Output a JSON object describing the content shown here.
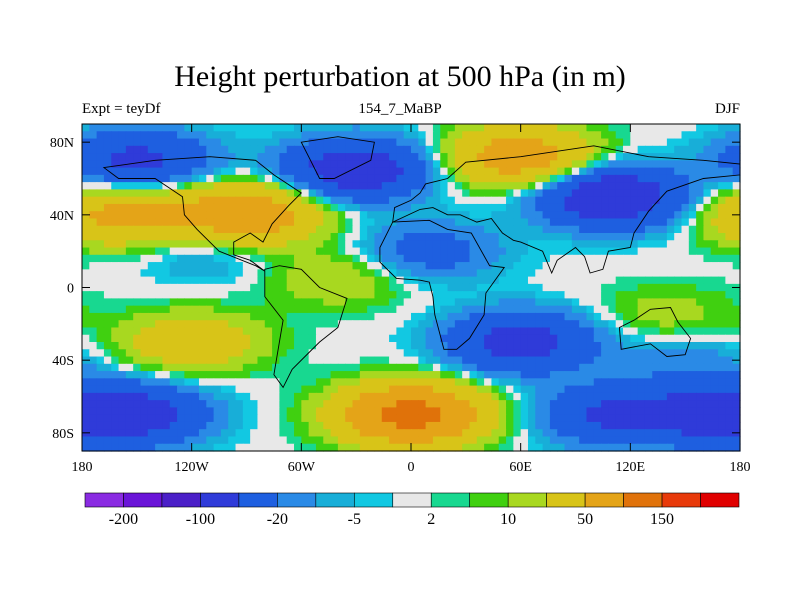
{
  "chart_data": {
    "type": "heatmap",
    "title": "Height perturbation at 500 hPa (in m)",
    "subtitle_left": "Expt = teyDf",
    "subtitle_center": "154_7_MaBP",
    "subtitle_right": "DJF",
    "xlim": [
      -180,
      180
    ],
    "ylim": [
      -90,
      90
    ],
    "x_ticks": [
      {
        "value": -180,
        "label": "180"
      },
      {
        "value": -120,
        "label": "120W"
      },
      {
        "value": -60,
        "label": "60W"
      },
      {
        "value": 0,
        "label": "0"
      },
      {
        "value": 60,
        "label": "60E"
      },
      {
        "value": 120,
        "label": "120E"
      },
      {
        "value": 180,
        "label": "180"
      }
    ],
    "y_ticks": [
      {
        "value": 80,
        "label": "80N"
      },
      {
        "value": 40,
        "label": "40N"
      },
      {
        "value": 0,
        "label": "0"
      },
      {
        "value": -40,
        "label": "40S"
      },
      {
        "value": -80,
        "label": "80S"
      }
    ],
    "colorbar": {
      "levels": [
        -200,
        -150,
        -100,
        -50,
        -20,
        -10,
        -5,
        -2,
        2,
        5,
        10,
        20,
        50,
        100,
        150,
        200
      ],
      "colors": [
        "#8a2be2",
        "#6a14d8",
        "#4b1fc8",
        "#2f3bd9",
        "#1e5fe0",
        "#2a8ae6",
        "#18aed8",
        "#12c8e2",
        "#e8e8e8",
        "#18d890",
        "#40d010",
        "#a8d820",
        "#d8c418",
        "#e4a418",
        "#e0720a",
        "#e83a0a",
        "#e00000"
      ],
      "labels": [
        {
          "level": -200,
          "text": "-200"
        },
        {
          "level": -100,
          "text": "-100"
        },
        {
          "level": -20,
          "text": "-20"
        },
        {
          "level": -5,
          "text": "-5"
        },
        {
          "level": 2,
          "text": "2"
        },
        {
          "level": 10,
          "text": "10"
        },
        {
          "level": 50,
          "text": "50"
        },
        {
          "level": 150,
          "text": "150"
        }
      ]
    },
    "field_anomalies": [
      {
        "lon": -90,
        "lat": 40,
        "value": 85
      },
      {
        "lon": -160,
        "lat": 40,
        "value": 60
      },
      {
        "lon": -150,
        "lat": 70,
        "value": -60
      },
      {
        "lon": -30,
        "lat": 65,
        "value": -80
      },
      {
        "lon": 60,
        "lat": 72,
        "value": 75
      },
      {
        "lon": 110,
        "lat": 50,
        "value": -90
      },
      {
        "lon": 10,
        "lat": 20,
        "value": -30
      },
      {
        "lon": -110,
        "lat": 20,
        "value": -15
      },
      {
        "lon": -40,
        "lat": 5,
        "value": 20
      },
      {
        "lon": 140,
        "lat": -15,
        "value": 15
      },
      {
        "lon": -120,
        "lat": -30,
        "value": 40
      },
      {
        "lon": 60,
        "lat": -30,
        "value": -70
      },
      {
        "lon": 150,
        "lat": -40,
        "value": -15
      },
      {
        "lon": -150,
        "lat": -70,
        "value": -60
      },
      {
        "lon": 0,
        "lat": -70,
        "value": 120
      },
      {
        "lon": 110,
        "lat": -70,
        "value": -55
      },
      {
        "lon": 170,
        "lat": -70,
        "value": -70
      }
    ]
  }
}
